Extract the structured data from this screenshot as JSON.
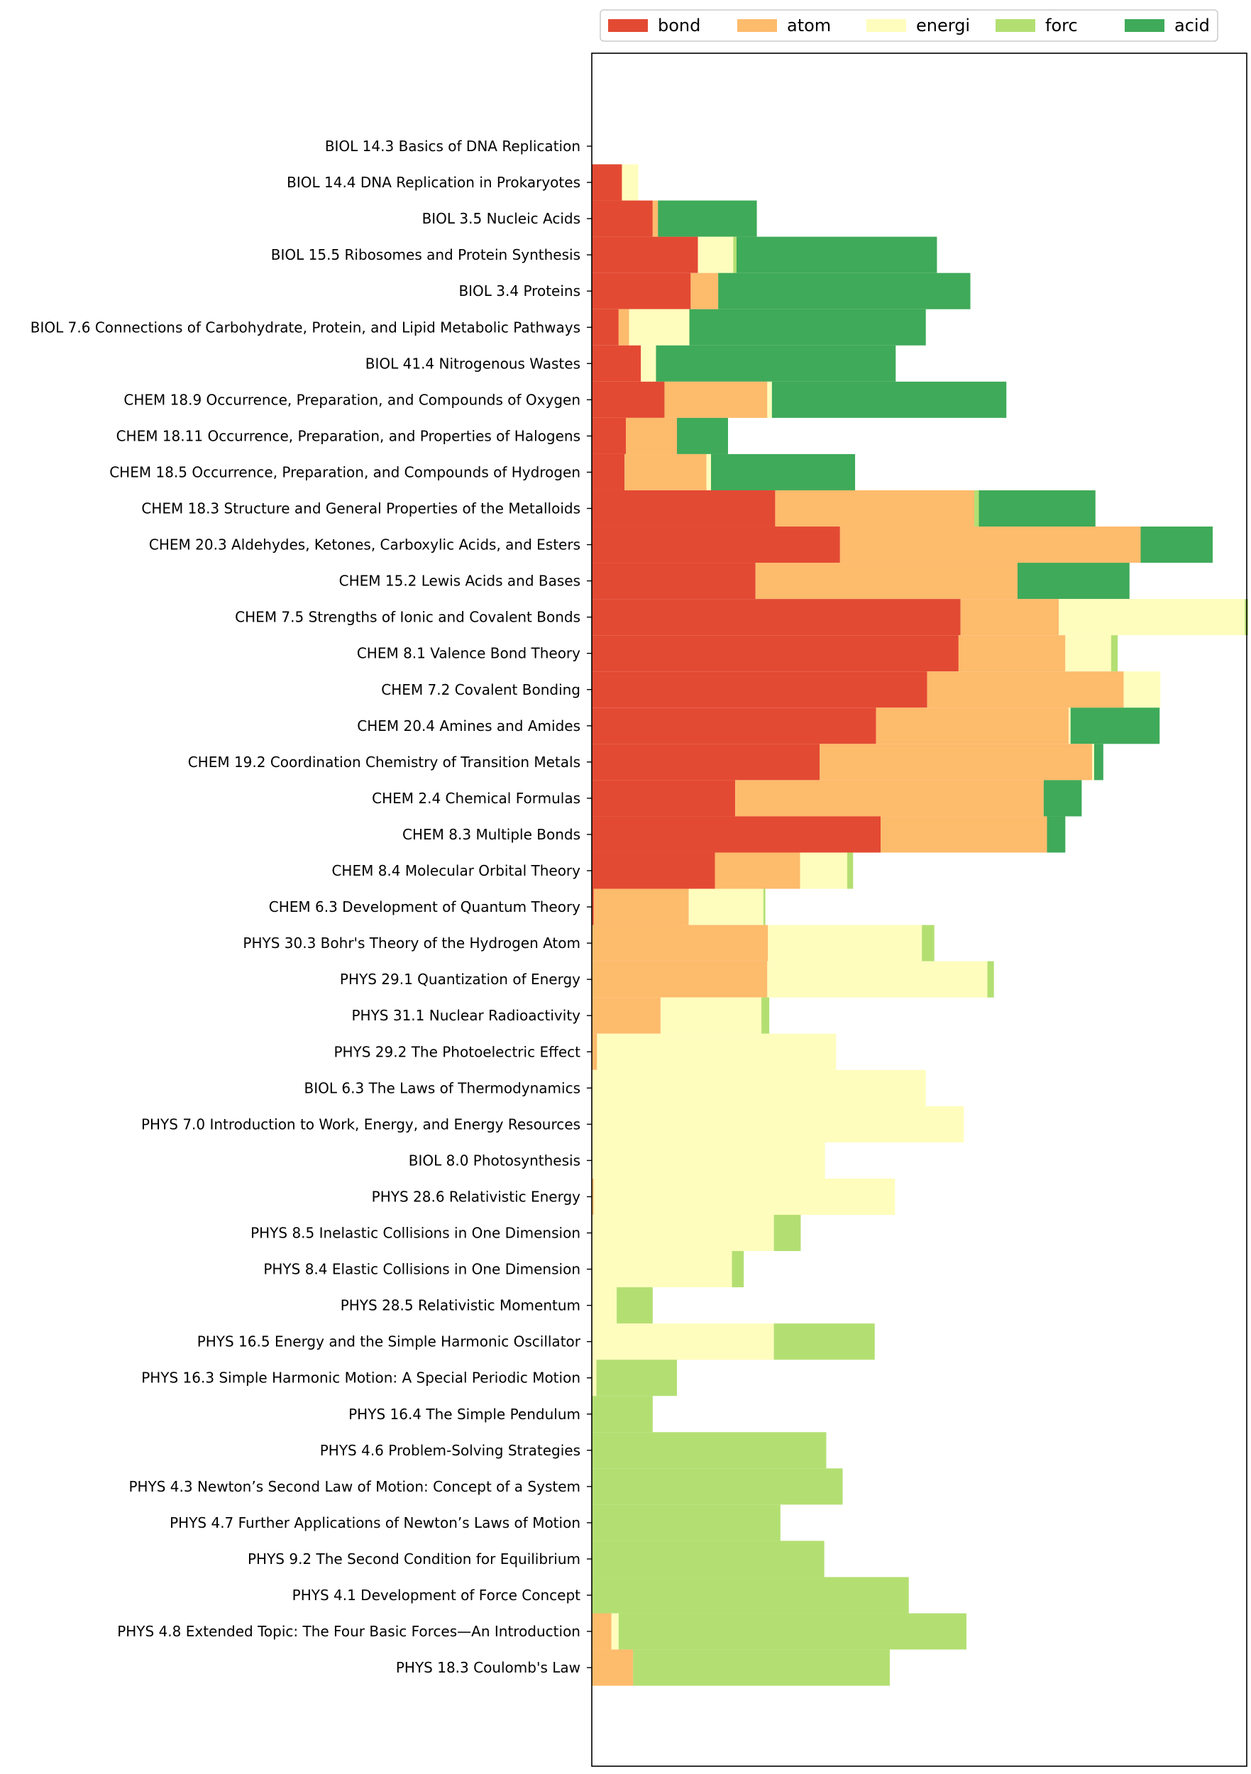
{
  "chart_data": {
    "type": "bar",
    "orientation": "horizontal",
    "stacked": true,
    "legend_position": "top",
    "grid": false,
    "xlabel": "",
    "ylabel": "",
    "title": "",
    "xlim": [
      0,
      1
    ],
    "categories": [
      "BIOL 14.3 Basics of DNA Replication",
      "BIOL 14.4 DNA Replication in Prokaryotes",
      "BIOL 3.5 Nucleic Acids",
      "BIOL 15.5 Ribosomes and Protein Synthesis",
      "BIOL 3.4 Proteins",
      "BIOL 7.6 Connections of Carbohydrate, Protein, and Lipid Metabolic Pathways",
      "BIOL 41.4 Nitrogenous Wastes",
      "CHEM 18.9 Occurrence, Preparation, and Compounds of Oxygen",
      "CHEM 18.11 Occurrence, Preparation, and Properties of Halogens",
      "CHEM 18.5 Occurrence, Preparation, and Compounds of Hydrogen",
      "CHEM 18.3 Structure and General Properties of the Metalloids",
      "CHEM 20.3 Aldehydes, Ketones, Carboxylic Acids, and Esters",
      "CHEM 15.2 Lewis Acids and Bases",
      "CHEM 7.5 Strengths of Ionic and Covalent Bonds",
      "CHEM 8.1 Valence Bond Theory",
      "CHEM 7.2 Covalent Bonding",
      "CHEM 20.4 Amines and Amides",
      "CHEM 19.2 Coordination Chemistry of Transition Metals",
      "CHEM 2.4 Chemical Formulas",
      "CHEM 8.3 Multiple Bonds",
      "CHEM 8.4 Molecular Orbital Theory",
      "CHEM 6.3 Development of Quantum Theory",
      "PHYS 30.3 Bohr's Theory of the Hydrogen Atom",
      "PHYS 29.1 Quantization of Energy",
      "PHYS 31.1 Nuclear Radioactivity",
      "PHYS 29.2 The Photoelectric Effect",
      "BIOL 6.3 The Laws of Thermodynamics",
      "PHYS 7.0 Introduction to Work, Energy, and Energy Resources",
      "BIOL 8.0 Photosynthesis ",
      "PHYS 28.6 Relativistic Energy",
      "PHYS 8.5 Inelastic Collisions in One Dimension",
      "PHYS 8.4 Elastic Collisions in One Dimension",
      "PHYS 28.5 Relativistic Momentum",
      "PHYS 16.5 Energy and the Simple Harmonic Oscillator",
      "PHYS 16.3 Simple Harmonic Motion: A Special Periodic Motion",
      "PHYS 16.4 The Simple Pendulum",
      "PHYS 4.6 Problem-Solving Strategies",
      "PHYS 4.3 Newton’s Second Law of Motion: Concept of a System",
      "PHYS 4.7 Further Applications of Newton’s Laws of Motion",
      "PHYS 9.2 The Second Condition for Equilibrium",
      "PHYS 4.1 Development of Force Concept",
      "PHYS 4.8 Extended Topic: The Four Basic Forces—An Introduction",
      "PHYS 18.3 Coulomb's Law"
    ],
    "series": [
      {
        "name": "bond",
        "color": "#e34a33",
        "values": [
          0,
          0.046,
          0.093,
          0.162,
          0.151,
          0.041,
          0.075,
          0.111,
          0.052,
          0.05,
          0.28,
          0.379,
          0.25,
          0.563,
          0.56,
          0.512,
          0.434,
          0.348,
          0.219,
          0.441,
          0.188,
          0.003,
          0,
          0,
          0,
          0,
          0,
          0,
          0,
          0,
          0,
          0,
          0,
          0,
          0,
          0,
          0,
          0,
          0,
          0,
          0,
          0,
          0
        ]
      },
      {
        "name": "atom",
        "color": "#fdbb6c",
        "values": [
          0,
          0,
          0.008,
          0,
          0.042,
          0.016,
          0,
          0.157,
          0.078,
          0.125,
          0.304,
          0.459,
          0.4,
          0.15,
          0.163,
          0.3,
          0.294,
          0.416,
          0.471,
          0.254,
          0.13,
          0.145,
          0.269,
          0.268,
          0.105,
          0.008,
          0,
          0,
          0,
          0.003,
          0,
          0,
          0,
          0,
          0,
          0,
          0,
          0,
          0,
          0,
          0,
          0.03,
          0.063
        ]
      },
      {
        "name": "energi",
        "color": "#fefdbd",
        "values": [
          0,
          0.025,
          0,
          0.054,
          0,
          0.092,
          0.023,
          0.007,
          0,
          0.007,
          0,
          0,
          0,
          0.284,
          0.07,
          0.056,
          0.003,
          0.003,
          0,
          0,
          0.072,
          0.114,
          0.235,
          0.336,
          0.154,
          0.365,
          0.51,
          0.568,
          0.356,
          0.46,
          0.278,
          0.214,
          0.038,
          0.278,
          0.007,
          0,
          0,
          0,
          0,
          0,
          0,
          0.011,
          0
        ]
      },
      {
        "name": "forc",
        "color": "#b3df72",
        "values": [
          0,
          0,
          0,
          0.005,
          0,
          0,
          0,
          0,
          0,
          0,
          0.007,
          0,
          0,
          0.005,
          0.01,
          0,
          0,
          0,
          0,
          0,
          0.009,
          0.003,
          0.019,
          0.01,
          0.012,
          0,
          0,
          0,
          0,
          0,
          0.041,
          0.018,
          0.055,
          0.154,
          0.123,
          0.093,
          0.358,
          0.383,
          0.288,
          0.355,
          0.484,
          0.531,
          0.392
        ]
      },
      {
        "name": "acid",
        "color": "#3faa59",
        "values": [
          0,
          0,
          0.151,
          0.306,
          0.385,
          0.361,
          0.366,
          0.358,
          0.078,
          0.22,
          0.178,
          0.11,
          0.171,
          0,
          0,
          0,
          0.136,
          0.014,
          0.058,
          0.028,
          0,
          0,
          0,
          0,
          0,
          0,
          0,
          0,
          0,
          0,
          0,
          0,
          0,
          0,
          0,
          0,
          0,
          0,
          0,
          0,
          0,
          0,
          0
        ]
      }
    ]
  }
}
